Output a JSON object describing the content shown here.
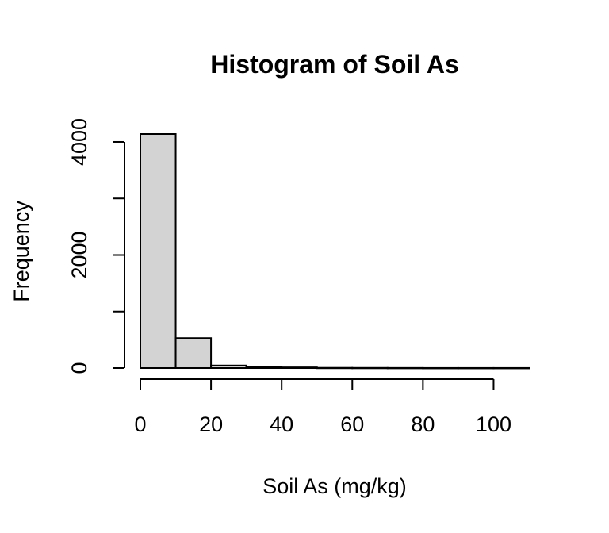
{
  "chart_data": {
    "type": "bar",
    "title": "Histogram of Soil As",
    "xlabel": "Soil As (mg/kg)",
    "ylabel": "Frequency",
    "bin_edges": [
      0,
      10,
      20,
      30,
      40,
      50,
      60,
      70,
      80,
      90,
      100,
      110
    ],
    "values": [
      4140,
      530,
      45,
      18,
      12,
      4,
      3,
      2,
      1,
      1,
      1
    ],
    "xlim": [
      0,
      110
    ],
    "ylim": [
      0,
      4140
    ],
    "x_ticks": [
      0,
      20,
      40,
      60,
      80,
      100
    ],
    "x_tick_labels": [
      "0",
      "20",
      "40",
      "60",
      "80",
      "100"
    ],
    "y_ticks": [
      0,
      1000,
      2000,
      3000,
      4000
    ],
    "y_tick_labels": [
      "0",
      "",
      "2000",
      "",
      "4000"
    ],
    "bar_color": "#d3d3d3",
    "grid": false,
    "legend": "none"
  }
}
